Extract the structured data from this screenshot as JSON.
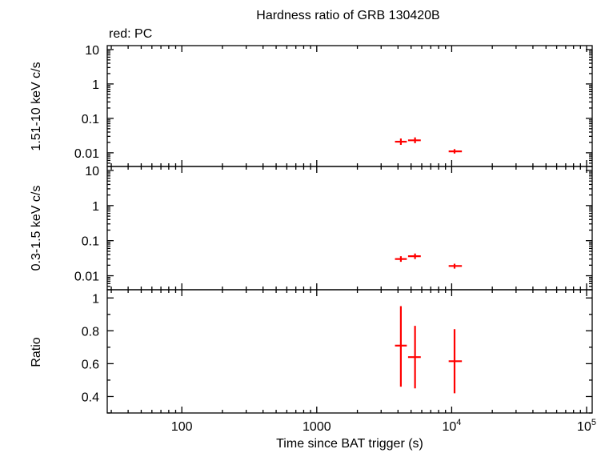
{
  "title": "Hardness ratio of GRB 130420B",
  "legend_text": "red: PC",
  "colors": {
    "data": "#ff0000",
    "axes": "#000000",
    "background": "#ffffff"
  },
  "chart_data": [
    {
      "type": "scatter",
      "panel": "top",
      "ylabel": "1.51-10 keV c/s",
      "yscale": "log",
      "ylim": [
        0.004,
        13
      ],
      "xscale": "log",
      "xlim": [
        28,
        110000
      ],
      "yticks": [
        "0.01",
        "0.1",
        "1",
        "10"
      ],
      "series": [
        {
          "name": "PC",
          "color": "#ff0000",
          "points": [
            {
              "x": 4200,
              "xlo": 3800,
              "xhi": 4650,
              "y": 0.021,
              "ylo": 0.017,
              "yhi": 0.026
            },
            {
              "x": 5350,
              "xlo": 4750,
              "xhi": 5900,
              "y": 0.023,
              "ylo": 0.019,
              "yhi": 0.028
            },
            {
              "x": 10500,
              "xlo": 9500,
              "xhi": 11900,
              "y": 0.011,
              "ylo": 0.0095,
              "yhi": 0.0128
            }
          ]
        }
      ]
    },
    {
      "type": "scatter",
      "panel": "middle",
      "ylabel": "0.3-1.5 keV c/s",
      "yscale": "log",
      "ylim": [
        0.004,
        13
      ],
      "xscale": "log",
      "xlim": [
        28,
        110000
      ],
      "yticks": [
        "0.01",
        "0.1",
        "1",
        "10"
      ],
      "series": [
        {
          "name": "PC",
          "color": "#ff0000",
          "points": [
            {
              "x": 4200,
              "xlo": 3800,
              "xhi": 4650,
              "y": 0.03,
              "ylo": 0.025,
              "yhi": 0.036
            },
            {
              "x": 5350,
              "xlo": 4750,
              "xhi": 5900,
              "y": 0.036,
              "ylo": 0.03,
              "yhi": 0.043
            },
            {
              "x": 10500,
              "xlo": 9500,
              "xhi": 11900,
              "y": 0.019,
              "ylo": 0.016,
              "yhi": 0.022
            }
          ]
        }
      ]
    },
    {
      "type": "scatter",
      "panel": "bottom",
      "ylabel": "Ratio",
      "xlabel": "Time since BAT trigger (s)",
      "yscale": "linear",
      "ylim": [
        0.3,
        1.05
      ],
      "xscale": "log",
      "xlim": [
        28,
        110000
      ],
      "yticks": [
        "0.4",
        "0.6",
        "0.8",
        "1"
      ],
      "xticks": [
        {
          "value": 100,
          "label": "100"
        },
        {
          "value": 1000,
          "label": "1000"
        },
        {
          "value": 10000,
          "label": "10",
          "sup": "4"
        },
        {
          "value": 100000,
          "label": "10",
          "sup": "5"
        }
      ],
      "series": [
        {
          "name": "PC",
          "color": "#ff0000",
          "points": [
            {
              "x": 4200,
              "xlo": 3800,
              "xhi": 4650,
              "y": 0.71,
              "ylo": 0.46,
              "yhi": 0.95
            },
            {
              "x": 5350,
              "xlo": 4750,
              "xhi": 5900,
              "y": 0.64,
              "ylo": 0.45,
              "yhi": 0.83
            },
            {
              "x": 10500,
              "xlo": 9500,
              "xhi": 11900,
              "y": 0.615,
              "ylo": 0.42,
              "yhi": 0.81
            }
          ]
        }
      ]
    }
  ]
}
